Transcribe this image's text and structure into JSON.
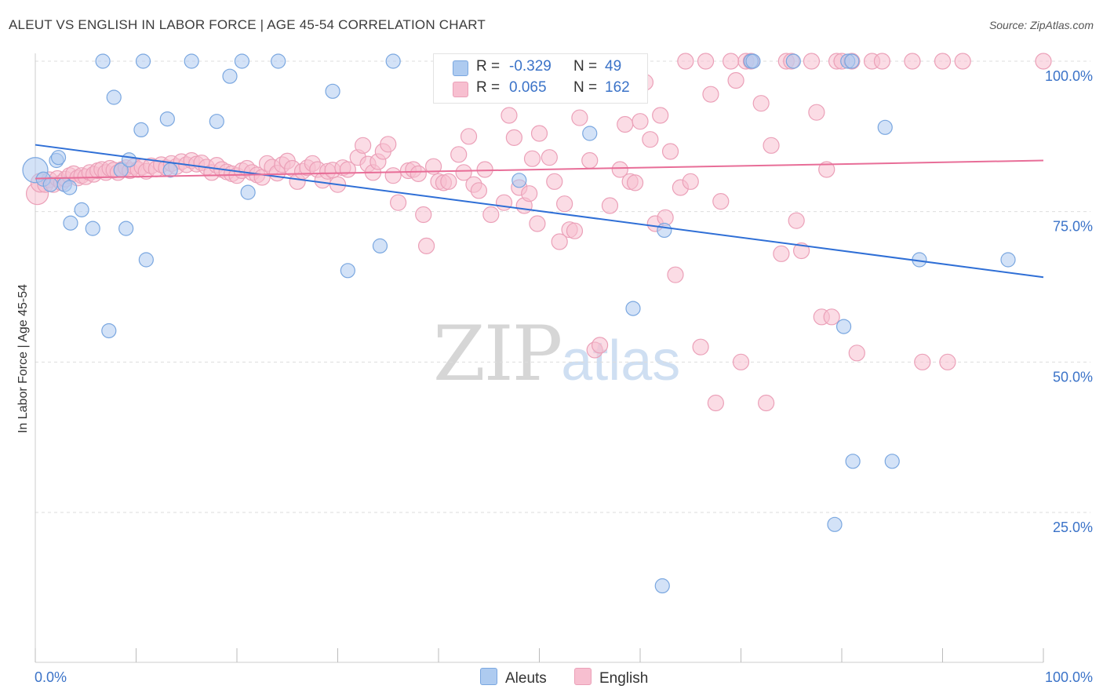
{
  "title": "ALEUT VS ENGLISH IN LABOR FORCE | AGE 45-54 CORRELATION CHART",
  "source": "Source: ZipAtlas.com",
  "watermark": {
    "zip": "ZIP",
    "atlas": "atlas"
  },
  "legend": {
    "aleut": {
      "r_label": "R =",
      "r_value": "-0.329",
      "n_label": "N =",
      "n_value": "49"
    },
    "english": {
      "r_label": "R =",
      "r_value": "0.065",
      "n_label": "N =",
      "n_value": "162"
    }
  },
  "bottom_legend": {
    "aleut": "Aleuts",
    "english": "English"
  },
  "colors": {
    "aleut_fill": "#aecbf0",
    "aleut_stroke": "#7aa7e0",
    "aleut_line": "#2f6fd6",
    "english_fill": "#f7bfd0",
    "english_stroke": "#eba0b8",
    "english_line": "#e86e98",
    "tick_label": "#3b73c8",
    "grid": "#dddddd"
  },
  "chart_data": {
    "type": "scatter",
    "xlabel": "",
    "ylabel": "In Labor Force | Age 45-54",
    "xlim": [
      0,
      100
    ],
    "ylim": [
      0,
      104
    ],
    "x_tick_labels": [
      "0.0%",
      "100.0%"
    ],
    "y_ticks": [
      25,
      50,
      75,
      100
    ],
    "y_tick_labels": [
      "25.0%",
      "50.0%",
      "75.0%",
      "100.0%"
    ],
    "grid": true,
    "series": [
      {
        "name": "Aleuts",
        "trend": {
          "x": [
            0,
            100
          ],
          "y": [
            86.1,
            64.1
          ]
        },
        "points": [
          [
            0.0,
            81.9,
            16
          ],
          [
            0.8,
            80.4,
            9
          ],
          [
            1.5,
            79.5,
            9
          ],
          [
            2.1,
            83.5,
            9
          ],
          [
            2.3,
            84.0,
            9
          ],
          [
            2.9,
            79.5,
            9
          ],
          [
            3.4,
            79.0,
            9
          ],
          [
            3.5,
            73.1,
            9
          ],
          [
            4.6,
            75.3,
            9
          ],
          [
            5.7,
            72.2,
            9
          ],
          [
            6.7,
            100,
            9
          ],
          [
            7.3,
            55.2,
            9
          ],
          [
            7.8,
            94.0,
            9
          ],
          [
            8.5,
            81.9,
            9
          ],
          [
            9.0,
            72.2,
            9
          ],
          [
            9.3,
            83.6,
            9
          ],
          [
            10.5,
            88.6,
            9
          ],
          [
            10.7,
            100,
            9
          ],
          [
            11.0,
            67.0,
            9
          ],
          [
            13.1,
            90.4,
            9
          ],
          [
            13.4,
            81.9,
            9
          ],
          [
            15.5,
            100,
            9
          ],
          [
            18.0,
            90.0,
            9
          ],
          [
            19.3,
            97.5,
            9
          ],
          [
            20.5,
            100,
            9
          ],
          [
            21.1,
            78.2,
            9
          ],
          [
            24.1,
            100,
            9
          ],
          [
            29.5,
            95.0,
            9
          ],
          [
            31.0,
            65.2,
            9
          ],
          [
            34.2,
            69.3,
            9
          ],
          [
            35.5,
            100,
            9
          ],
          [
            48.0,
            80.2,
            9
          ],
          [
            55.0,
            88.0,
            9
          ],
          [
            59.3,
            58.9,
            9
          ],
          [
            59.5,
            100,
            9
          ],
          [
            62.2,
            12.8,
            9
          ],
          [
            62.4,
            71.9,
            9
          ],
          [
            71.0,
            100,
            9
          ],
          [
            71.2,
            100,
            9
          ],
          [
            75.2,
            100,
            9
          ],
          [
            79.3,
            23.0,
            9
          ],
          [
            80.2,
            55.9,
            9
          ],
          [
            80.6,
            100,
            9
          ],
          [
            81.0,
            100,
            9
          ],
          [
            81.1,
            33.5,
            9
          ],
          [
            84.3,
            89.0,
            9
          ],
          [
            85.0,
            33.5,
            9
          ],
          [
            87.7,
            67.0,
            9
          ],
          [
            96.5,
            67.0,
            9
          ]
        ]
      },
      {
        "name": "English",
        "trend": {
          "x": [
            0,
            100
          ],
          "y": [
            80.5,
            83.5
          ]
        },
        "points": [
          [
            0.2,
            78.0,
            14
          ],
          [
            0.5,
            79.8,
            12
          ],
          [
            1.0,
            79.5,
            10
          ],
          [
            1.4,
            80.3,
            10
          ],
          [
            1.8,
            79.5,
            10
          ],
          [
            2.2,
            80.5,
            10
          ],
          [
            2.6,
            79.8,
            10
          ],
          [
            3.0,
            80.4,
            10
          ],
          [
            3.4,
            81.0,
            10
          ],
          [
            3.8,
            81.3,
            10
          ],
          [
            4.2,
            80.6,
            10
          ],
          [
            4.6,
            81.0,
            10
          ],
          [
            5.0,
            80.8,
            10
          ],
          [
            5.4,
            81.5,
            10
          ],
          [
            5.8,
            81.2,
            10
          ],
          [
            6.2,
            81.8,
            10
          ],
          [
            6.6,
            82.0,
            10
          ],
          [
            7.0,
            81.5,
            10
          ],
          [
            7.4,
            82.2,
            10
          ],
          [
            7.8,
            81.9,
            10
          ],
          [
            8.2,
            81.5,
            10
          ],
          [
            8.6,
            82.0,
            10
          ],
          [
            9.0,
            82.3,
            10
          ],
          [
            9.4,
            81.8,
            10
          ],
          [
            9.8,
            82.5,
            10
          ],
          [
            10.2,
            82.0,
            10
          ],
          [
            10.6,
            82.4,
            10
          ],
          [
            11.0,
            81.7,
            10
          ],
          [
            11.5,
            82.6,
            10
          ],
          [
            12.0,
            82.1,
            10
          ],
          [
            12.5,
            82.8,
            10
          ],
          [
            13.0,
            82.3,
            10
          ],
          [
            13.5,
            83.0,
            10
          ],
          [
            14.0,
            82.5,
            10
          ],
          [
            14.5,
            83.3,
            10
          ],
          [
            15.0,
            82.8,
            10
          ],
          [
            15.5,
            83.5,
            10
          ],
          [
            16.0,
            82.9,
            10
          ],
          [
            16.5,
            83.1,
            10
          ],
          [
            17.0,
            82.4,
            10
          ],
          [
            17.5,
            81.5,
            10
          ],
          [
            18.0,
            82.7,
            10
          ],
          [
            18.5,
            82.0,
            10
          ],
          [
            19.0,
            81.6,
            10
          ],
          [
            19.5,
            81.3,
            10
          ],
          [
            20.0,
            81.0,
            10
          ],
          [
            20.5,
            81.8,
            10
          ],
          [
            21.0,
            82.2,
            10
          ],
          [
            21.5,
            81.5,
            10
          ],
          [
            22.0,
            81.1,
            10
          ],
          [
            22.5,
            80.7,
            10
          ],
          [
            23.0,
            83.0,
            10
          ],
          [
            23.5,
            82.4,
            10
          ],
          [
            24.0,
            81.4,
            10
          ],
          [
            24.5,
            82.8,
            10
          ],
          [
            25.0,
            83.4,
            10
          ],
          [
            25.5,
            82.2,
            10
          ],
          [
            26.0,
            80.0,
            10
          ],
          [
            26.5,
            81.7,
            10
          ],
          [
            27.0,
            82.3,
            10
          ],
          [
            27.5,
            83.0,
            10
          ],
          [
            28.0,
            82.0,
            10
          ],
          [
            28.5,
            80.2,
            10
          ],
          [
            29.0,
            81.7,
            10
          ],
          [
            29.5,
            81.9,
            10
          ],
          [
            30.0,
            79.5,
            10
          ],
          [
            30.5,
            82.3,
            10
          ],
          [
            31.0,
            82.0,
            10
          ],
          [
            32.0,
            84.0,
            10
          ],
          [
            32.5,
            86.0,
            10
          ],
          [
            33.0,
            82.9,
            10
          ],
          [
            33.5,
            81.5,
            10
          ],
          [
            34.0,
            83.3,
            10
          ],
          [
            34.5,
            85.0,
            10
          ],
          [
            35.0,
            86.2,
            10
          ],
          [
            35.5,
            81.0,
            10
          ],
          [
            36.0,
            76.5,
            10
          ],
          [
            37.0,
            81.8,
            10
          ],
          [
            37.5,
            82.0,
            10
          ],
          [
            38.0,
            81.3,
            10
          ],
          [
            38.5,
            74.5,
            10
          ],
          [
            38.8,
            69.3,
            10
          ],
          [
            39.5,
            82.5,
            10
          ],
          [
            40.0,
            80.0,
            10
          ],
          [
            40.5,
            79.8,
            10
          ],
          [
            41.0,
            80.0,
            10
          ],
          [
            42.0,
            84.5,
            10
          ],
          [
            42.5,
            81.5,
            10
          ],
          [
            43.0,
            87.5,
            10
          ],
          [
            43.5,
            79.5,
            10
          ],
          [
            44.0,
            78.5,
            10
          ],
          [
            44.6,
            82.0,
            10
          ],
          [
            45.2,
            74.5,
            10
          ],
          [
            46.5,
            76.5,
            10
          ],
          [
            47.0,
            91.0,
            10
          ],
          [
            47.5,
            87.3,
            10
          ],
          [
            48.0,
            79.0,
            10
          ],
          [
            48.5,
            76.0,
            10
          ],
          [
            49.0,
            78.0,
            10
          ],
          [
            49.3,
            83.8,
            10
          ],
          [
            49.8,
            73.0,
            10
          ],
          [
            50.0,
            88.0,
            10
          ],
          [
            51.0,
            84.0,
            10
          ],
          [
            51.5,
            80.0,
            10
          ],
          [
            52.0,
            70.0,
            10
          ],
          [
            52.5,
            76.3,
            10
          ],
          [
            53.0,
            72.0,
            10
          ],
          [
            53.5,
            71.8,
            10
          ],
          [
            54.0,
            90.6,
            10
          ],
          [
            55.0,
            83.5,
            10
          ],
          [
            55.5,
            52.0,
            10
          ],
          [
            56.0,
            52.8,
            10
          ],
          [
            57.0,
            76.0,
            10
          ],
          [
            58.0,
            82.0,
            10
          ],
          [
            58.5,
            89.5,
            10
          ],
          [
            59.0,
            80.0,
            10
          ],
          [
            59.5,
            79.8,
            10
          ],
          [
            60.0,
            90.0,
            10
          ],
          [
            60.5,
            96.5,
            10
          ],
          [
            61.0,
            87.0,
            10
          ],
          [
            61.5,
            73.0,
            10
          ],
          [
            62.0,
            91.0,
            10
          ],
          [
            62.5,
            74.0,
            10
          ],
          [
            63.0,
            85.0,
            10
          ],
          [
            63.5,
            64.5,
            10
          ],
          [
            64.0,
            79.0,
            10
          ],
          [
            64.5,
            100,
            10
          ],
          [
            65.0,
            80.0,
            10
          ],
          [
            66.0,
            52.5,
            10
          ],
          [
            66.5,
            100,
            10
          ],
          [
            67.0,
            94.5,
            10
          ],
          [
            67.5,
            43.2,
            10
          ],
          [
            68.0,
            76.7,
            10
          ],
          [
            69.0,
            100,
            10
          ],
          [
            69.5,
            96.8,
            10
          ],
          [
            70.0,
            50.0,
            10
          ],
          [
            70.5,
            100,
            10
          ],
          [
            71.0,
            100,
            10
          ],
          [
            72.0,
            93.0,
            10
          ],
          [
            72.5,
            43.2,
            10
          ],
          [
            73.0,
            86.0,
            10
          ],
          [
            74.0,
            68.0,
            10
          ],
          [
            74.5,
            100,
            10
          ],
          [
            75.0,
            100,
            10
          ],
          [
            75.5,
            73.5,
            10
          ],
          [
            76.0,
            68.5,
            10
          ],
          [
            77.0,
            100,
            10
          ],
          [
            77.5,
            91.5,
            10
          ],
          [
            78.0,
            57.5,
            10
          ],
          [
            78.5,
            82.0,
            10
          ],
          [
            79.0,
            57.5,
            10
          ],
          [
            79.5,
            100,
            10
          ],
          [
            80.0,
            100,
            10
          ],
          [
            81.0,
            100,
            10
          ],
          [
            81.5,
            51.5,
            10
          ],
          [
            83.0,
            100,
            10
          ],
          [
            84.0,
            100,
            10
          ],
          [
            87.0,
            100,
            10
          ],
          [
            88.0,
            50.0,
            10
          ],
          [
            90.0,
            100,
            10
          ],
          [
            90.5,
            50.0,
            10
          ],
          [
            92.0,
            100,
            10
          ],
          [
            100.0,
            100,
            10
          ]
        ]
      }
    ]
  }
}
